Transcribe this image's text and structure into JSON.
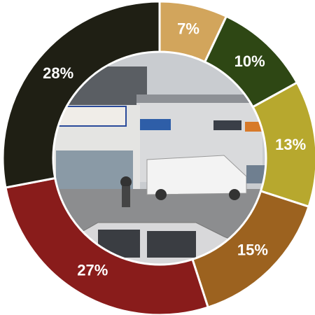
{
  "chart_data": {
    "type": "donut",
    "values": [
      7,
      10,
      13,
      15,
      27,
      28
    ],
    "value_labels": [
      "7%",
      "10%",
      "13%",
      "15%",
      "27%",
      "28%"
    ],
    "colors": [
      "#d2a55c",
      "#2e4714",
      "#b7a82e",
      "#9c621f",
      "#891c1b",
      "#1f1f14"
    ]
  }
}
